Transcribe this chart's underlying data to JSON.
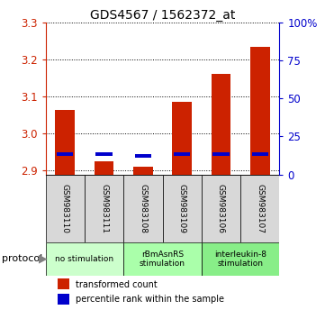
{
  "title": "GDS4567 / 1562372_at",
  "samples": [
    "GSM983110",
    "GSM983111",
    "GSM983108",
    "GSM983109",
    "GSM983106",
    "GSM983107"
  ],
  "red_values": [
    3.065,
    2.925,
    2.91,
    3.085,
    3.16,
    3.235
  ],
  "blue_values": [
    2.945,
    2.945,
    2.94,
    2.945,
    2.945,
    2.945
  ],
  "ylim": [
    2.89,
    3.3
  ],
  "yticks": [
    2.9,
    3.0,
    3.1,
    3.2,
    3.3
  ],
  "y2ticks": [
    0,
    25,
    50,
    75,
    100
  ],
  "y2labels": [
    "0",
    "25",
    "50",
    "75",
    "100%"
  ],
  "bar_bottom": 2.89,
  "red_color": "#cc2200",
  "blue_color": "#0000cc",
  "groups": [
    {
      "label": "no stimulation",
      "samples": [
        0,
        1
      ],
      "color": "#ccffcc"
    },
    {
      "label": "rBmAsnRS\nstimulation",
      "samples": [
        2,
        3
      ],
      "color": "#aaffaa"
    },
    {
      "label": "interleukin-8\nstimulation",
      "samples": [
        4,
        5
      ],
      "color": "#88ee88"
    }
  ],
  "protocol_label": "protocol",
  "legend": [
    {
      "label": "transformed count",
      "color": "#cc2200"
    },
    {
      "label": "percentile rank within the sample",
      "color": "#0000cc"
    }
  ],
  "tick_color_left": "#cc2200",
  "tick_color_right": "#0000cc",
  "sample_bg": "#d8d8d8",
  "bar_width": 0.5,
  "blue_bar_height": 0.01
}
